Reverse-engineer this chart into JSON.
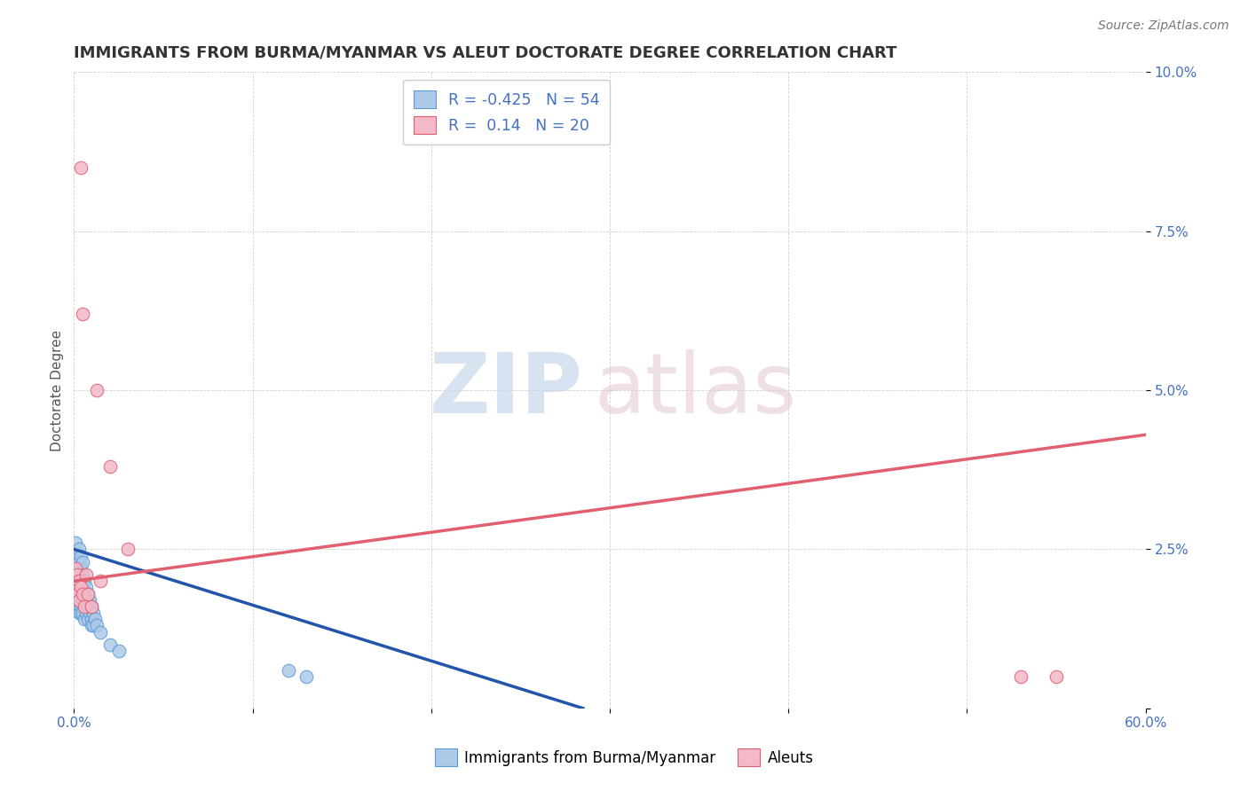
{
  "title": "IMMIGRANTS FROM BURMA/MYANMAR VS ALEUT DOCTORATE DEGREE CORRELATION CHART",
  "source": "Source: ZipAtlas.com",
  "ylabel": "Doctorate Degree",
  "xlim": [
    0.0,
    0.6
  ],
  "ylim": [
    0.0,
    0.1
  ],
  "xtick_vals": [
    0.0,
    0.1,
    0.2,
    0.3,
    0.4,
    0.5,
    0.6
  ],
  "xtick_labels": [
    "0.0%",
    "",
    "",
    "",
    "",
    "",
    "60.0%"
  ],
  "ytick_vals": [
    0.0,
    0.025,
    0.05,
    0.075,
    0.1
  ],
  "ytick_labels": [
    "",
    "2.5%",
    "5.0%",
    "7.5%",
    "10.0%"
  ],
  "grid_color": "#cccccc",
  "background_color": "#ffffff",
  "blue_scatter": {
    "x": [
      0.001,
      0.001,
      0.001,
      0.001,
      0.001,
      0.002,
      0.002,
      0.002,
      0.002,
      0.002,
      0.002,
      0.002,
      0.003,
      0.003,
      0.003,
      0.003,
      0.003,
      0.003,
      0.003,
      0.004,
      0.004,
      0.004,
      0.004,
      0.004,
      0.004,
      0.005,
      0.005,
      0.005,
      0.005,
      0.005,
      0.006,
      0.006,
      0.006,
      0.006,
      0.007,
      0.007,
      0.007,
      0.008,
      0.008,
      0.008,
      0.009,
      0.009,
      0.01,
      0.01,
      0.01,
      0.011,
      0.011,
      0.012,
      0.013,
      0.015,
      0.02,
      0.025,
      0.12,
      0.13
    ],
    "y": [
      0.024,
      0.022,
      0.02,
      0.019,
      0.026,
      0.023,
      0.022,
      0.02,
      0.019,
      0.021,
      0.018,
      0.017,
      0.025,
      0.022,
      0.02,
      0.018,
      0.016,
      0.023,
      0.015,
      0.022,
      0.02,
      0.018,
      0.016,
      0.024,
      0.015,
      0.021,
      0.019,
      0.017,
      0.015,
      0.023,
      0.02,
      0.018,
      0.016,
      0.014,
      0.019,
      0.017,
      0.015,
      0.018,
      0.016,
      0.014,
      0.017,
      0.015,
      0.016,
      0.014,
      0.013,
      0.015,
      0.013,
      0.014,
      0.013,
      0.012,
      0.01,
      0.009,
      0.006,
      0.005
    ],
    "color": "#adc9e8",
    "edgecolor": "#5b9bd5",
    "R": -0.425,
    "N": 54,
    "line_color": "#2255aa",
    "line_x": [
      0.0,
      0.285
    ],
    "line_y": [
      0.025,
      0.0
    ]
  },
  "pink_scatter": {
    "x": [
      0.001,
      0.001,
      0.002,
      0.002,
      0.003,
      0.003,
      0.004,
      0.004,
      0.005,
      0.005,
      0.006,
      0.007,
      0.008,
      0.01,
      0.013,
      0.015,
      0.02,
      0.03,
      0.53,
      0.55
    ],
    "y": [
      0.022,
      0.019,
      0.021,
      0.018,
      0.02,
      0.017,
      0.085,
      0.019,
      0.062,
      0.018,
      0.016,
      0.021,
      0.018,
      0.016,
      0.05,
      0.02,
      0.038,
      0.025,
      0.005,
      0.005
    ],
    "color": "#f4b8c8",
    "edgecolor": "#e06070",
    "R": 0.14,
    "N": 20,
    "line_color": "#e06070",
    "line_x": [
      0.0,
      0.6
    ],
    "line_y": [
      0.02,
      0.043
    ]
  },
  "watermark_zip": "ZIP",
  "watermark_atlas": "atlas",
  "dot_size": 110,
  "title_fontsize": 13,
  "label_fontsize": 11,
  "tick_fontsize": 11,
  "source_fontsize": 10
}
